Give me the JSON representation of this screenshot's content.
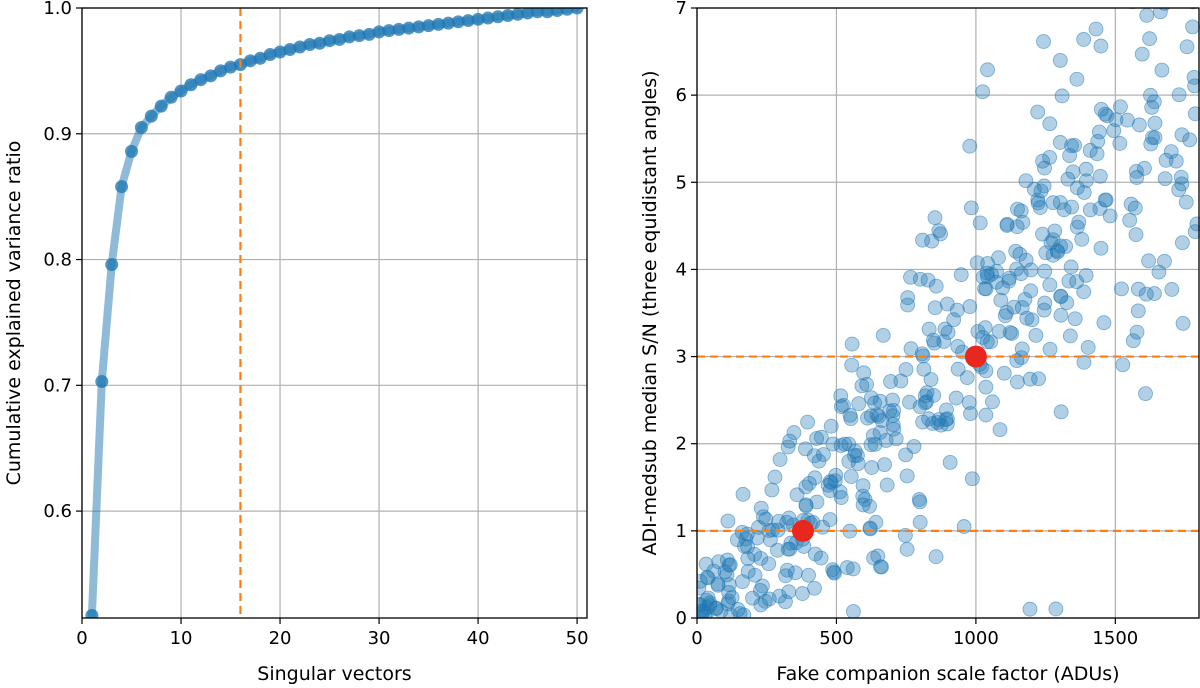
{
  "chart_data": [
    {
      "type": "line",
      "xlabel": "Singular vectors",
      "ylabel": "Cumulative explained variance ratio",
      "xlim": [
        0,
        51
      ],
      "ylim": [
        0.515,
        1.0
      ],
      "xticks": [
        0,
        10,
        20,
        30,
        40,
        50
      ],
      "xtick_labels": [
        "0",
        "10",
        "20",
        "30",
        "40",
        "50"
      ],
      "yticks": [
        0.6,
        0.7,
        0.8,
        0.9,
        1.0
      ],
      "ytick_labels": [
        "0.6",
        "0.7",
        "0.8",
        "0.9",
        "1.0"
      ],
      "grid": true,
      "series": [
        {
          "name": "cumulative explained variance",
          "color": "#1f77b4",
          "x": [
            1,
            2,
            3,
            4,
            5,
            6,
            7,
            8,
            9,
            10,
            11,
            12,
            13,
            14,
            15,
            16,
            17,
            18,
            19,
            20,
            21,
            22,
            23,
            24,
            25,
            26,
            27,
            28,
            29,
            30,
            31,
            32,
            33,
            34,
            35,
            36,
            37,
            38,
            39,
            40,
            41,
            42,
            43,
            44,
            45,
            46,
            47,
            48,
            49,
            50
          ],
          "y": [
            0.517,
            0.703,
            0.796,
            0.858,
            0.886,
            0.905,
            0.914,
            0.922,
            0.929,
            0.934,
            0.939,
            0.943,
            0.946,
            0.95,
            0.953,
            0.955,
            0.958,
            0.96,
            0.963,
            0.965,
            0.967,
            0.969,
            0.971,
            0.972,
            0.974,
            0.975,
            0.977,
            0.978,
            0.979,
            0.981,
            0.982,
            0.983,
            0.984,
            0.985,
            0.986,
            0.987,
            0.988,
            0.989,
            0.99,
            0.991,
            0.992,
            0.993,
            0.994,
            0.995,
            0.996,
            0.997,
            0.997,
            0.998,
            0.999,
            1.0
          ]
        }
      ],
      "annotations": [
        {
          "type": "vline",
          "x": 16,
          "style": "dashed",
          "color": "#ff7f0e"
        }
      ]
    },
    {
      "type": "scatter",
      "xlabel": "Fake companion scale factor (ADUs)",
      "ylabel": "ADI-medsub median S/N (three equidistant angles)",
      "xlim": [
        0,
        1800
      ],
      "ylim": [
        0,
        7
      ],
      "xticks": [
        0,
        500,
        1000,
        1500
      ],
      "xtick_labels": [
        "0",
        "500",
        "1000",
        "1500"
      ],
      "yticks": [
        0,
        1,
        2,
        3,
        4,
        5,
        6,
        7
      ],
      "ytick_labels": [
        "0",
        "1",
        "2",
        "3",
        "4",
        "5",
        "6",
        "7"
      ],
      "grid": true,
      "series": [
        {
          "name": "injections",
          "color": "#1f77b4",
          "alpha": 0.35,
          "n_points": 480,
          "trend": "S/N increases roughly linearly with scale factor (about S/N = 0.0034 * scale), spread widening with scale"
        },
        {
          "name": "highlighted",
          "color": "#e8281e",
          "x": [
            380,
            1000
          ],
          "y": [
            1.0,
            3.0
          ]
        }
      ],
      "annotations": [
        {
          "type": "hline",
          "y": 1,
          "style": "dashed",
          "color": "#ff7f0e"
        },
        {
          "type": "hline",
          "y": 3,
          "style": "dashed",
          "color": "#ff7f0e"
        }
      ]
    }
  ]
}
